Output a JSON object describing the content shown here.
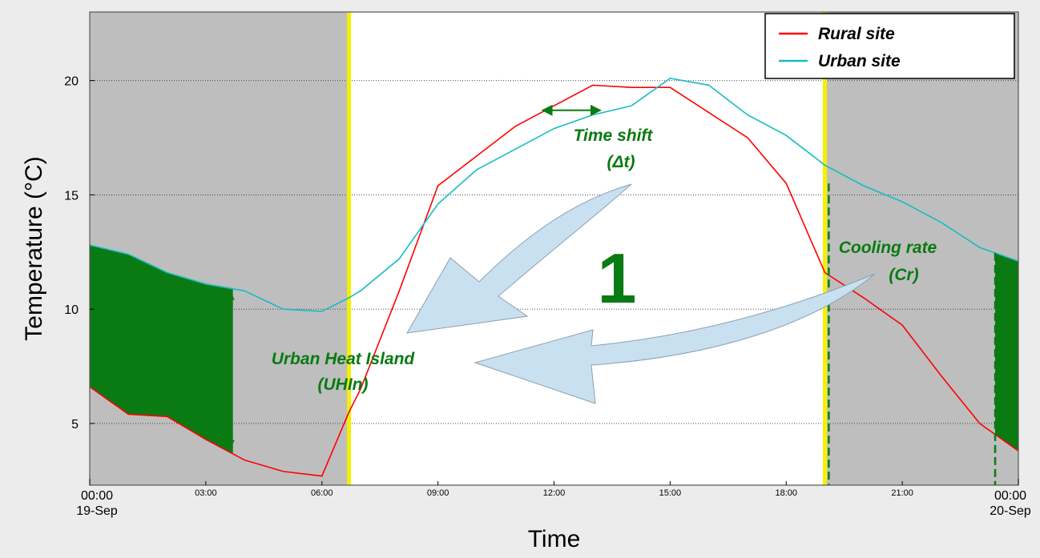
{
  "chart_data": {
    "type": "line",
    "xlabel": "Time",
    "ylabel": "Temperature (°C)",
    "xlim": [
      0,
      24
    ],
    "ylim": [
      2.3,
      23.0
    ],
    "yticks": [
      5,
      10,
      15,
      20
    ],
    "ytick_labels": [
      "5",
      "10",
      "15",
      "20"
    ],
    "minor_xticks": [
      3,
      6,
      9,
      12,
      15,
      18,
      21
    ],
    "minor_xtick_labels": [
      "03:00",
      "06:00",
      "09:00",
      "12:00",
      "15:00",
      "18:00",
      "21:00"
    ],
    "major_xticks": [
      {
        "x": 0,
        "time": "00:00",
        "date": "19-Sep"
      },
      {
        "x": 24,
        "time": "00:00",
        "date": "20-Sep"
      }
    ],
    "grid": true,
    "legend_position": "top-right",
    "night_periods": [
      [
        0,
        6.7
      ],
      [
        19.0,
        24
      ]
    ],
    "sunrise": 6.7,
    "sunset": 19.0,
    "series": [
      {
        "name": "Rural site",
        "color": "#ff0000",
        "x": [
          -0.5,
          0,
          1,
          2,
          3,
          4,
          5,
          6,
          6.7,
          7,
          8,
          9,
          10,
          11,
          12,
          13,
          14,
          15,
          16,
          17,
          18,
          19,
          20,
          21,
          22,
          23,
          24,
          24.5
        ],
        "y": [
          7.2,
          6.6,
          5.4,
          5.3,
          4.3,
          3.4,
          2.9,
          2.7,
          5.5,
          6.5,
          10.8,
          15.4,
          16.7,
          18.0,
          18.9,
          19.8,
          19.7,
          19.7,
          18.6,
          17.5,
          15.5,
          11.6,
          10.5,
          9.3,
          7.1,
          5.0,
          3.8,
          3.7
        ]
      },
      {
        "name": "Urban site",
        "color": "#17bcc4",
        "x": [
          -0.5,
          0,
          1,
          2,
          3,
          4,
          5,
          6,
          6.7,
          7,
          8,
          9,
          10,
          11,
          12,
          13,
          14,
          15,
          16,
          17,
          18,
          19,
          20,
          21,
          22,
          23,
          24,
          24.5
        ],
        "y": [
          13.2,
          12.8,
          12.4,
          11.6,
          11.1,
          10.8,
          10.0,
          9.9,
          10.5,
          10.8,
          12.2,
          14.6,
          16.1,
          17.0,
          17.9,
          18.5,
          18.9,
          20.1,
          19.8,
          18.5,
          17.6,
          16.3,
          15.4,
          14.7,
          13.8,
          12.7,
          12.1,
          12.0
        ]
      }
    ],
    "uhi_fills": [
      [
        0,
        3.7
      ],
      [
        23.4,
        24
      ]
    ],
    "uhi_arrow": {
      "x": 3.6,
      "label_line1": "Urban Heat Island",
      "label_line2": "(UHIn)"
    },
    "time_shift": {
      "x1": 11.7,
      "x2": 13.2,
      "y": 18.7,
      "label_line1": "Time shift",
      "label_line2": "(Δt)"
    },
    "cooling_rate": {
      "dash_x": [
        19.1,
        23.4
      ],
      "label_line1": "Cooling rate",
      "label_line2": "(Cr)"
    },
    "big_label": "1",
    "annotation_color": "#0a7a12",
    "night_color": "#bebebe",
    "sun_line_color": "#f5f000",
    "curve_arrow_color": "#c8e0f0"
  }
}
